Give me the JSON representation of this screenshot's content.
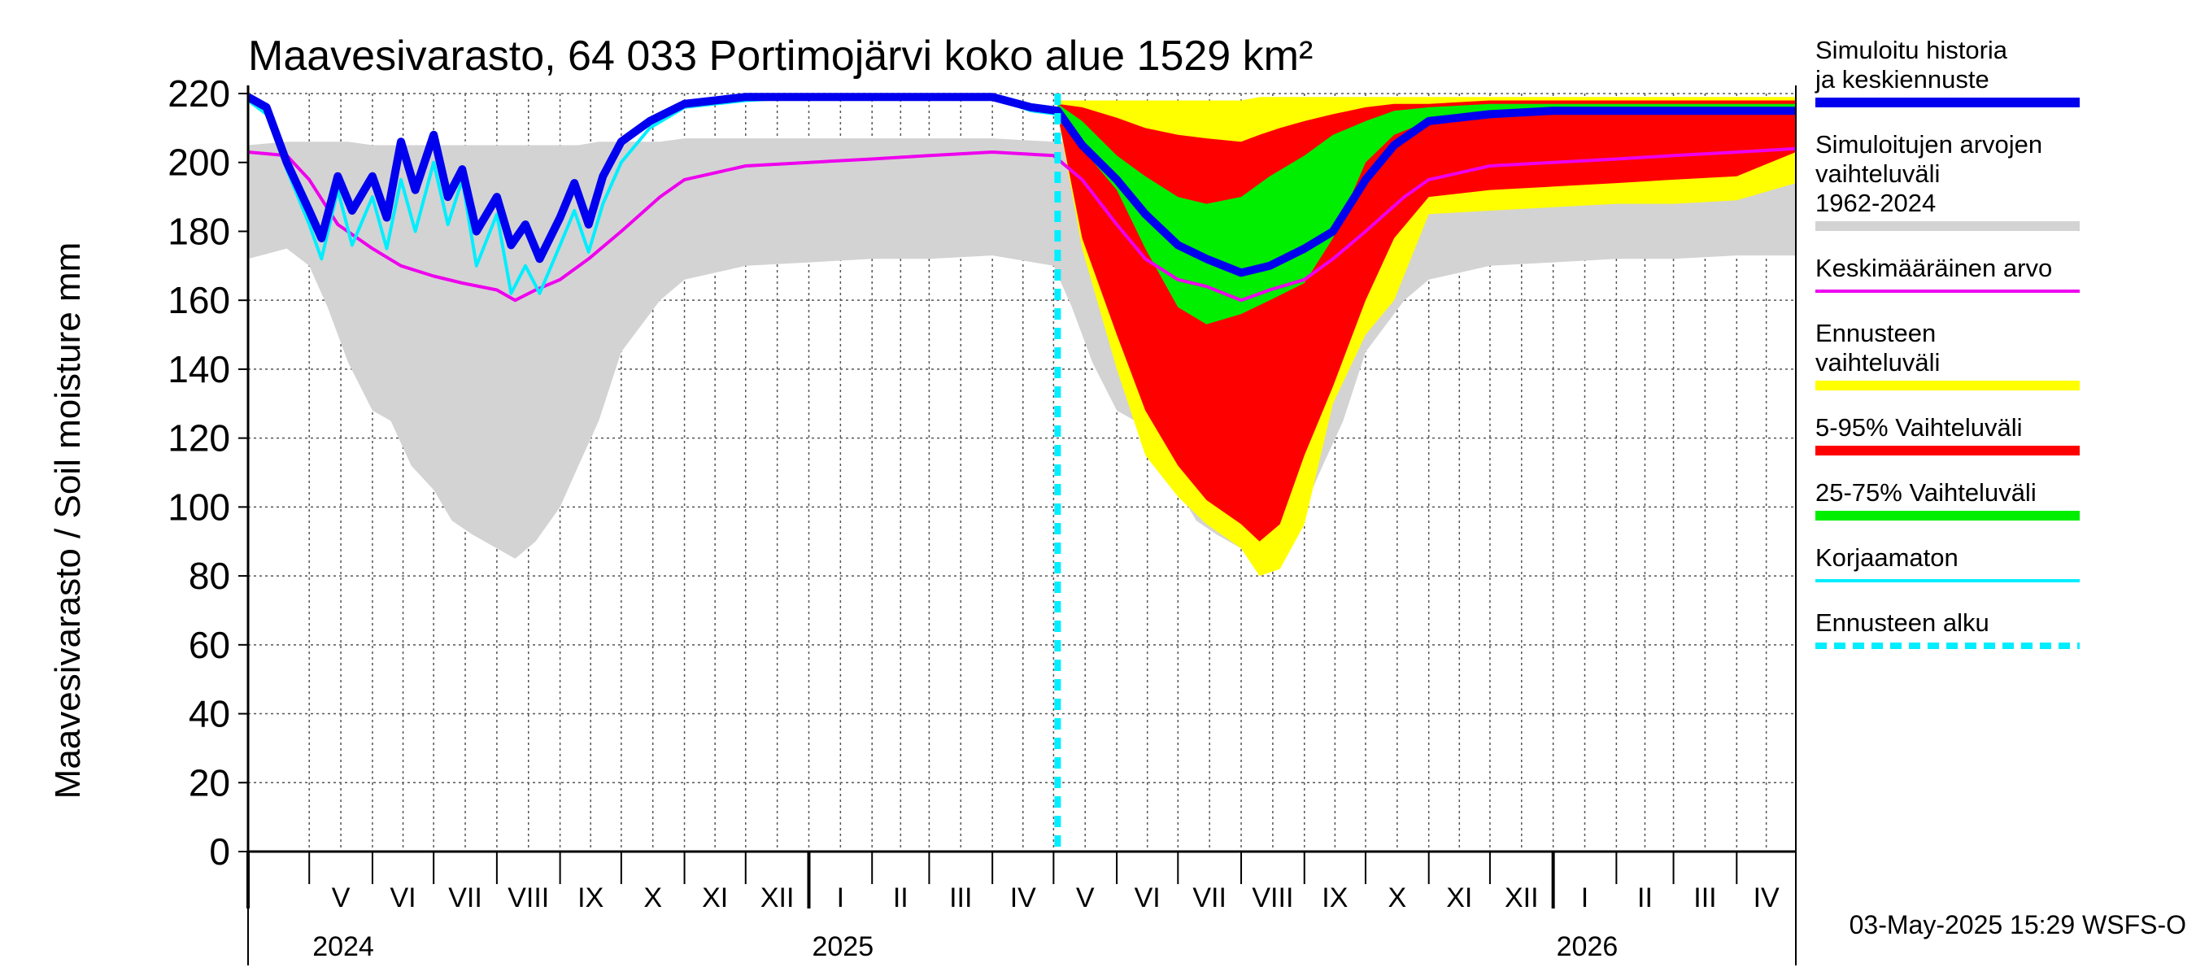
{
  "chart_data": {
    "type": "area",
    "title": "Maavesivarasto, 64 033 Portimojärvi koko alue 1529 km²",
    "ylabel": "Maavesivarasto / Soil moisture   mm",
    "ylim": [
      0,
      220
    ],
    "yticks": [
      0,
      20,
      40,
      60,
      80,
      100,
      120,
      140,
      160,
      180,
      200,
      220
    ],
    "xlim": [
      "2024-04-01",
      "2026-04-30"
    ],
    "months": [
      {
        "label": "V",
        "start": "2024-05-01"
      },
      {
        "label": "VI",
        "start": "2024-06-01"
      },
      {
        "label": "VII",
        "start": "2024-07-01"
      },
      {
        "label": "VIII",
        "start": "2024-08-01"
      },
      {
        "label": "IX",
        "start": "2024-09-01"
      },
      {
        "label": "X",
        "start": "2024-10-01"
      },
      {
        "label": "XI",
        "start": "2024-11-01"
      },
      {
        "label": "XII",
        "start": "2024-12-01"
      },
      {
        "label": "I",
        "start": "2025-01-01"
      },
      {
        "label": "II",
        "start": "2025-02-01"
      },
      {
        "label": "III",
        "start": "2025-03-01"
      },
      {
        "label": "IV",
        "start": "2025-04-01"
      },
      {
        "label": "V",
        "start": "2025-05-01"
      },
      {
        "label": "VI",
        "start": "2025-06-01"
      },
      {
        "label": "VII",
        "start": "2025-07-01"
      },
      {
        "label": "VIII",
        "start": "2025-08-01"
      },
      {
        "label": "IX",
        "start": "2025-09-01"
      },
      {
        "label": "X",
        "start": "2025-10-01"
      },
      {
        "label": "XI",
        "start": "2025-11-01"
      },
      {
        "label": "XII",
        "start": "2025-12-01"
      },
      {
        "label": "I",
        "start": "2026-01-01"
      },
      {
        "label": "II",
        "start": "2026-02-01"
      },
      {
        "label": "III",
        "start": "2026-03-01"
      },
      {
        "label": "IV",
        "start": "2026-04-01"
      }
    ],
    "years": [
      {
        "label": "2024",
        "date": "2024-05-01"
      },
      {
        "label": "2025",
        "date": "2025-01-01"
      },
      {
        "label": "2026",
        "date": "2026-01-01"
      }
    ],
    "forecast_start": "2025-05-03",
    "grid": true,
    "legend_position": "right",
    "colors": {
      "history": "#0000ee",
      "hist_range": "#d3d3d3",
      "mean": "#ee00ee",
      "forecast_range": "#ffff00",
      "p5_95": "#ff0000",
      "p25_75": "#00ee00",
      "uncorrected": "#00eeff",
      "forecast_start": "#00eeff"
    },
    "series": [
      {
        "name": "Simuloitujen arvojen vaihteluväli 1962-2024",
        "kind": "band",
        "x": [
          "2024-04-01",
          "2024-04-20",
          "2024-05-01",
          "2024-05-10",
          "2024-05-20",
          "2024-06-01",
          "2024-06-10",
          "2024-06-20",
          "2024-07-01",
          "2024-07-10",
          "2024-07-20",
          "2024-08-01",
          "2024-08-10",
          "2024-08-20",
          "2024-09-01",
          "2024-09-10",
          "2024-09-20",
          "2024-10-01",
          "2024-10-20",
          "2024-11-01",
          "2024-12-01",
          "2025-01-01",
          "2025-02-01",
          "2025-03-01",
          "2025-04-01",
          "2025-05-01",
          "2025-05-10",
          "2025-05-20",
          "2025-06-01",
          "2025-06-10",
          "2025-06-20",
          "2025-07-01",
          "2025-07-10",
          "2025-07-20",
          "2025-08-01",
          "2025-08-10",
          "2025-08-20",
          "2025-09-01",
          "2025-09-10",
          "2025-09-20",
          "2025-10-01",
          "2025-10-20",
          "2025-11-01",
          "2025-12-01",
          "2026-01-01",
          "2026-02-01",
          "2026-03-01",
          "2026-04-01",
          "2026-04-30"
        ],
        "low": [
          172,
          175,
          170,
          158,
          142,
          128,
          125,
          112,
          105,
          96,
          92,
          88,
          85,
          90,
          100,
          112,
          125,
          145,
          160,
          166,
          170,
          171,
          172,
          172,
          173,
          170,
          158,
          142,
          128,
          125,
          112,
          105,
          96,
          92,
          88,
          85,
          90,
          100,
          112,
          125,
          145,
          160,
          166,
          170,
          171,
          172,
          172,
          173,
          173
        ],
        "high": [
          205,
          206,
          206,
          206,
          206,
          205,
          205,
          205,
          205,
          205,
          205,
          205,
          205,
          205,
          205,
          205,
          206,
          206,
          206,
          207,
          207,
          207,
          207,
          207,
          207,
          206,
          206,
          206,
          206,
          205,
          205,
          205,
          205,
          205,
          205,
          205,
          205,
          205,
          205,
          205,
          206,
          206,
          206,
          207,
          207,
          207,
          207,
          207,
          207
        ]
      },
      {
        "name": "Ennusteen vaihteluväli",
        "kind": "band",
        "x": [
          "2025-05-03",
          "2025-05-15",
          "2025-06-01",
          "2025-06-15",
          "2025-07-01",
          "2025-07-15",
          "2025-08-01",
          "2025-08-10",
          "2025-08-20",
          "2025-09-01",
          "2025-09-15",
          "2025-10-01",
          "2025-10-15",
          "2025-11-01",
          "2025-12-01",
          "2026-01-01",
          "2026-02-01",
          "2026-03-01",
          "2026-04-01",
          "2026-04-30"
        ],
        "low": [
          214,
          175,
          140,
          115,
          103,
          95,
          88,
          80,
          82,
          95,
          130,
          150,
          160,
          185,
          186,
          187,
          188,
          188,
          189,
          194
        ],
        "high": [
          218,
          218,
          218,
          218,
          218,
          218,
          218,
          219,
          219,
          219,
          219,
          219,
          219,
          219,
          219,
          219,
          219,
          219,
          219,
          219
        ]
      },
      {
        "name": "5-95% Vaihteluväli",
        "kind": "band",
        "x": [
          "2025-05-03",
          "2025-05-15",
          "2025-06-01",
          "2025-06-15",
          "2025-07-01",
          "2025-07-15",
          "2025-08-01",
          "2025-08-10",
          "2025-08-20",
          "2025-09-01",
          "2025-09-15",
          "2025-10-01",
          "2025-10-15",
          "2025-11-01",
          "2025-12-01",
          "2026-01-01",
          "2026-02-01",
          "2026-03-01",
          "2026-04-01",
          "2026-04-30"
        ],
        "low": [
          214,
          178,
          150,
          128,
          112,
          102,
          95,
          90,
          95,
          115,
          135,
          160,
          178,
          190,
          192,
          193,
          194,
          195,
          196,
          203
        ],
        "high": [
          217,
          216,
          213,
          210,
          208,
          207,
          206,
          208,
          210,
          212,
          214,
          216,
          217,
          217,
          218,
          218,
          218,
          218,
          218,
          218
        ]
      },
      {
        "name": "25-75% Vaihteluväli",
        "kind": "band",
        "x": [
          "2025-05-03",
          "2025-05-15",
          "2025-06-01",
          "2025-06-15",
          "2025-07-01",
          "2025-07-15",
          "2025-08-01",
          "2025-08-15",
          "2025-09-01",
          "2025-09-15",
          "2025-10-01",
          "2025-10-15",
          "2025-11-01",
          "2025-12-01",
          "2026-01-01",
          "2026-02-01",
          "2026-03-01",
          "2026-04-01",
          "2026-04-30"
        ],
        "low": [
          215,
          204,
          192,
          175,
          158,
          153,
          156,
          160,
          165,
          178,
          200,
          208,
          212,
          214,
          215,
          215,
          215,
          216,
          216
        ],
        "high": [
          217,
          212,
          202,
          196,
          190,
          188,
          190,
          196,
          202,
          208,
          212,
          215,
          216,
          217,
          217,
          217,
          217,
          217,
          217
        ]
      },
      {
        "name": "Keskimääräinen arvo",
        "kind": "line",
        "x": [
          "2024-04-01",
          "2024-04-20",
          "2024-05-01",
          "2024-05-15",
          "2024-06-01",
          "2024-06-15",
          "2024-07-01",
          "2024-07-15",
          "2024-08-01",
          "2024-08-10",
          "2024-08-20",
          "2024-09-01",
          "2024-09-15",
          "2024-10-01",
          "2024-10-20",
          "2024-11-01",
          "2024-12-01",
          "2025-01-01",
          "2025-02-01",
          "2025-03-01",
          "2025-04-01",
          "2025-05-01",
          "2025-05-15",
          "2025-06-01",
          "2025-06-15",
          "2025-07-01",
          "2025-07-15",
          "2025-08-01",
          "2025-08-15",
          "2025-09-01",
          "2025-09-15",
          "2025-10-01",
          "2025-10-20",
          "2025-11-01",
          "2025-12-01",
          "2026-01-01",
          "2026-02-01",
          "2026-03-01",
          "2026-04-01",
          "2026-04-30"
        ],
        "y": [
          203,
          202,
          195,
          182,
          175,
          170,
          167,
          165,
          163,
          160,
          163,
          166,
          172,
          180,
          190,
          195,
          199,
          200,
          201,
          202,
          203,
          202,
          195,
          182,
          172,
          166,
          164,
          160,
          163,
          166,
          172,
          180,
          190,
          195,
          199,
          200,
          201,
          202,
          203,
          204
        ]
      },
      {
        "name": "Korjaamaton",
        "kind": "line",
        "x": [
          "2024-04-01",
          "2024-04-10",
          "2024-04-20",
          "2024-05-01",
          "2024-05-07",
          "2024-05-15",
          "2024-05-22",
          "2024-06-01",
          "2024-06-08",
          "2024-06-15",
          "2024-06-22",
          "2024-07-01",
          "2024-07-08",
          "2024-07-15",
          "2024-07-22",
          "2024-08-01",
          "2024-08-08",
          "2024-08-15",
          "2024-08-22",
          "2024-09-01",
          "2024-09-08",
          "2024-09-15",
          "2024-09-22",
          "2024-10-01",
          "2024-10-15",
          "2024-11-01",
          "2024-12-01",
          "2025-01-01",
          "2025-02-01",
          "2025-03-01",
          "2025-04-01",
          "2025-04-20",
          "2025-05-03"
        ],
        "y": [
          218,
          214,
          198,
          182,
          172,
          192,
          176,
          190,
          175,
          195,
          180,
          200,
          182,
          195,
          170,
          185,
          162,
          170,
          162,
          176,
          186,
          174,
          188,
          200,
          210,
          216,
          218,
          219,
          219,
          219,
          219,
          215,
          214
        ]
      },
      {
        "name": "Simuloitu historia ja keskiennuste",
        "kind": "line",
        "x": [
          "2024-04-01",
          "2024-04-10",
          "2024-04-20",
          "2024-05-01",
          "2024-05-07",
          "2024-05-15",
          "2024-05-22",
          "2024-06-01",
          "2024-06-08",
          "2024-06-15",
          "2024-06-22",
          "2024-07-01",
          "2024-07-08",
          "2024-07-15",
          "2024-07-22",
          "2024-08-01",
          "2024-08-08",
          "2024-08-15",
          "2024-08-22",
          "2024-09-01",
          "2024-09-08",
          "2024-09-15",
          "2024-09-22",
          "2024-10-01",
          "2024-10-15",
          "2024-11-01",
          "2024-12-01",
          "2025-01-01",
          "2025-02-01",
          "2025-03-01",
          "2025-04-01",
          "2025-04-20",
          "2025-05-03",
          "2025-05-15",
          "2025-06-01",
          "2025-06-15",
          "2025-07-01",
          "2025-07-15",
          "2025-08-01",
          "2025-08-15",
          "2025-09-01",
          "2025-09-15",
          "2025-10-01",
          "2025-10-15",
          "2025-11-01",
          "2025-12-01",
          "2026-01-01",
          "2026-02-01",
          "2026-03-01",
          "2026-04-01",
          "2026-04-30"
        ],
        "y": [
          219,
          216,
          200,
          186,
          178,
          196,
          186,
          196,
          184,
          206,
          192,
          208,
          190,
          198,
          180,
          190,
          176,
          182,
          172,
          184,
          194,
          182,
          196,
          206,
          212,
          217,
          219,
          219,
          219,
          219,
          219,
          216,
          215,
          205,
          195,
          185,
          176,
          172,
          168,
          170,
          175,
          180,
          195,
          205,
          212,
          214,
          215,
          215,
          215,
          215,
          215
        ]
      }
    ]
  },
  "legend": [
    {
      "label": "Simuloitu historia ja keskiennuste",
      "color": "#0000ee",
      "style": "thick"
    },
    {
      "label": "Simuloitujen arvojen vaihteluväli 1962-2024",
      "color": "#d3d3d3",
      "style": "thick"
    },
    {
      "label": "Keskimääräinen arvo",
      "color": "#ee00ee",
      "style": "thin"
    },
    {
      "label": "Ennusteen vaihteluväli",
      "color": "#ffff00",
      "style": "thick"
    },
    {
      "label": "5-95% Vaihteluväli",
      "color": "#ff0000",
      "style": "thick"
    },
    {
      "label": "25-75% Vaihteluväli",
      "color": "#00ee00",
      "style": "thick"
    },
    {
      "label": "Korjaamaton",
      "color": "#00eeff",
      "style": "thin"
    },
    {
      "label": "Ennusteen alku",
      "color": "#00eeff",
      "style": "dashed"
    }
  ],
  "footer": "03-May-2025 15:29 WSFS-O"
}
